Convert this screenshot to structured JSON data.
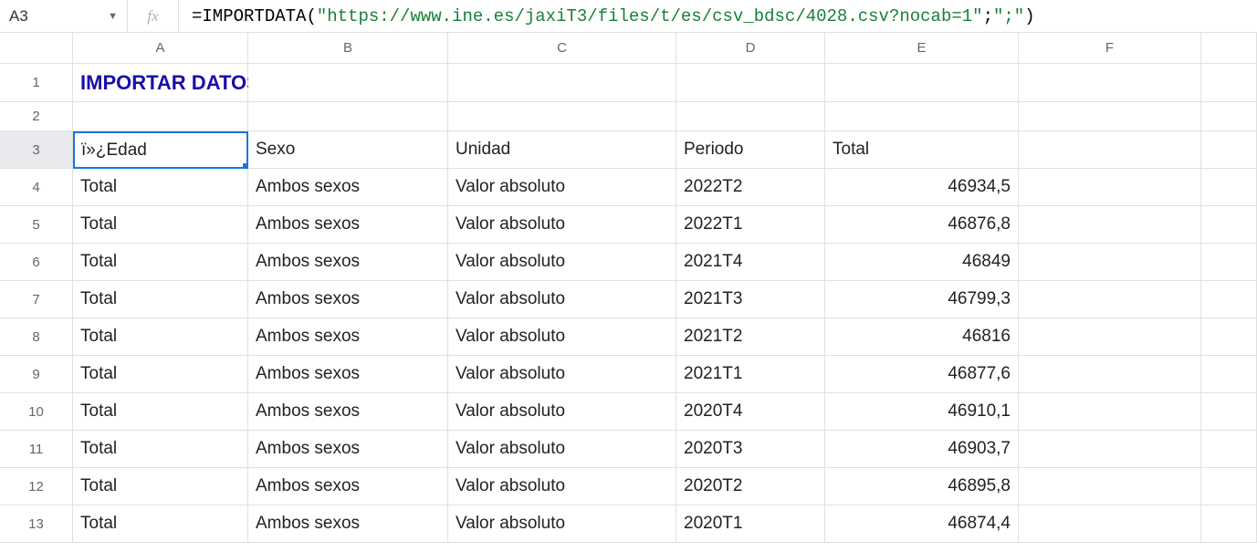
{
  "nameBox": "A3",
  "fxLabel": "fx",
  "formula": {
    "eq": "=",
    "func": "IMPORTDATA",
    "openParen": "(",
    "url": "\"https://www.ine.es/jaxiT3/files/t/es/csv_bdsc/4028.csv?nocab=1\"",
    "sep1": ";",
    "delim": "\";\"",
    "closeParen": ")"
  },
  "columns": [
    "A",
    "B",
    "C",
    "D",
    "E",
    "F",
    ""
  ],
  "rowNumbers": [
    "1",
    "2",
    "3",
    "4",
    "5",
    "6",
    "7",
    "8",
    "9",
    "10",
    "11",
    "12",
    "13"
  ],
  "title": "IMPORTAR DATOS CSV O TSV",
  "headers": {
    "A": "ï»¿Edad",
    "B": "Sexo",
    "C": "Unidad",
    "D": "Periodo",
    "E": "Total"
  },
  "dataRows": [
    {
      "A": "Total",
      "B": "Ambos sexos",
      "C": "Valor absoluto",
      "D": "2022T2",
      "E": "46934,5"
    },
    {
      "A": "Total",
      "B": "Ambos sexos",
      "C": "Valor absoluto",
      "D": "2022T1",
      "E": "46876,8"
    },
    {
      "A": "Total",
      "B": "Ambos sexos",
      "C": "Valor absoluto",
      "D": "2021T4",
      "E": "46849"
    },
    {
      "A": "Total",
      "B": "Ambos sexos",
      "C": "Valor absoluto",
      "D": "2021T3",
      "E": "46799,3"
    },
    {
      "A": "Total",
      "B": "Ambos sexos",
      "C": "Valor absoluto",
      "D": "2021T2",
      "E": "46816"
    },
    {
      "A": "Total",
      "B": "Ambos sexos",
      "C": "Valor absoluto",
      "D": "2021T1",
      "E": "46877,6"
    },
    {
      "A": "Total",
      "B": "Ambos sexos",
      "C": "Valor absoluto",
      "D": "2020T4",
      "E": "46910,1"
    },
    {
      "A": "Total",
      "B": "Ambos sexos",
      "C": "Valor absoluto",
      "D": "2020T3",
      "E": "46903,7"
    },
    {
      "A": "Total",
      "B": "Ambos sexos",
      "C": "Valor absoluto",
      "D": "2020T2",
      "E": "46895,8"
    },
    {
      "A": "Total",
      "B": "Ambos sexos",
      "C": "Valor absoluto",
      "D": "2020T1",
      "E": "46874,4"
    }
  ],
  "selectedCell": "A3",
  "colors": {
    "titleColor": "#1a0dab",
    "stringColor": "#188038",
    "selectedBorder": "#1a73e8",
    "gridBorder": "#e0e0e0",
    "headerText": "#666"
  }
}
